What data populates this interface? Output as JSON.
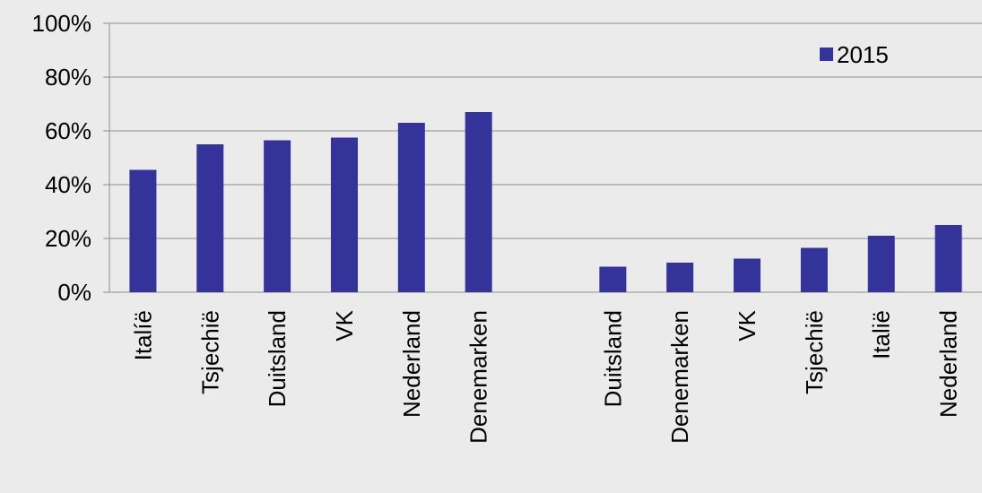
{
  "chart_data": {
    "type": "bar",
    "title": "",
    "xlabel": "",
    "ylabel": "",
    "ylim": [
      0,
      100
    ],
    "y_ticks": [
      "0%",
      "20%",
      "40%",
      "60%",
      "80%",
      "100%"
    ],
    "y_tick_values": [
      0,
      20,
      40,
      60,
      80,
      100
    ],
    "grid": true,
    "legend_position": "top-right",
    "categories": [
      "Italíë",
      "Tsjechië",
      "Duitsland",
      "VK",
      "Nederland",
      "Denemarken",
      "",
      "Duitsland",
      "Denemarken",
      "VK",
      "Tsjechië",
      "Italië",
      "Nederland"
    ],
    "series": [
      {
        "name": "2015",
        "color": "#333399",
        "values": [
          45.5,
          55,
          56.5,
          57.5,
          63,
          67,
          null,
          9.5,
          11,
          12.5,
          16.5,
          21,
          25
        ]
      }
    ]
  }
}
